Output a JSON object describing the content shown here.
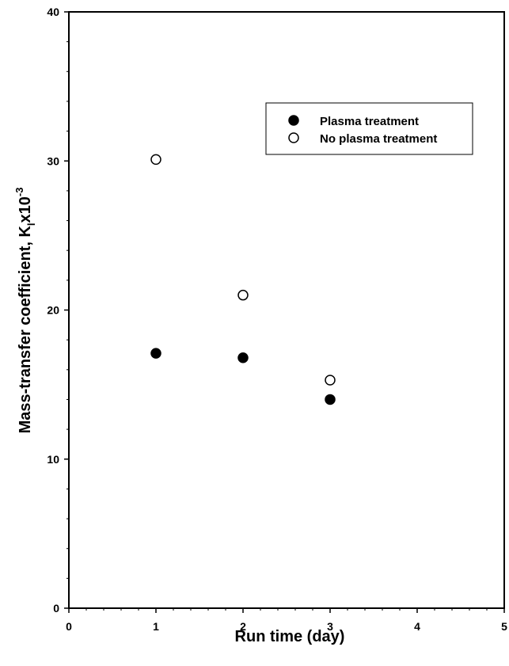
{
  "chart_data": {
    "type": "scatter",
    "title": "",
    "xlabel": "Run time (day)",
    "ylabel": {
      "main": "Mass-transfer coefficient, K",
      "subscript": "l",
      "tail": "x10",
      "superscript": "-3"
    },
    "xlim": [
      0,
      5
    ],
    "ylim": [
      0,
      40
    ],
    "xticks": [
      "0",
      "1",
      "2",
      "3",
      "4",
      "5"
    ],
    "yticks": [
      "0",
      "10",
      "20",
      "30",
      "40"
    ],
    "grid": false,
    "legend_position": "top-right",
    "series": [
      {
        "name": "Plasma treatment",
        "marker": "filled-circle",
        "color": "#000000",
        "points": [
          {
            "x": 1,
            "y": 17.1
          },
          {
            "x": 2,
            "y": 16.8
          },
          {
            "x": 3,
            "y": 14.0
          }
        ]
      },
      {
        "name": "No plasma treatment",
        "marker": "open-circle",
        "color": "#000000",
        "points": [
          {
            "x": 1,
            "y": 30.1
          },
          {
            "x": 2,
            "y": 21.0
          },
          {
            "x": 3,
            "y": 15.3
          }
        ]
      }
    ]
  }
}
